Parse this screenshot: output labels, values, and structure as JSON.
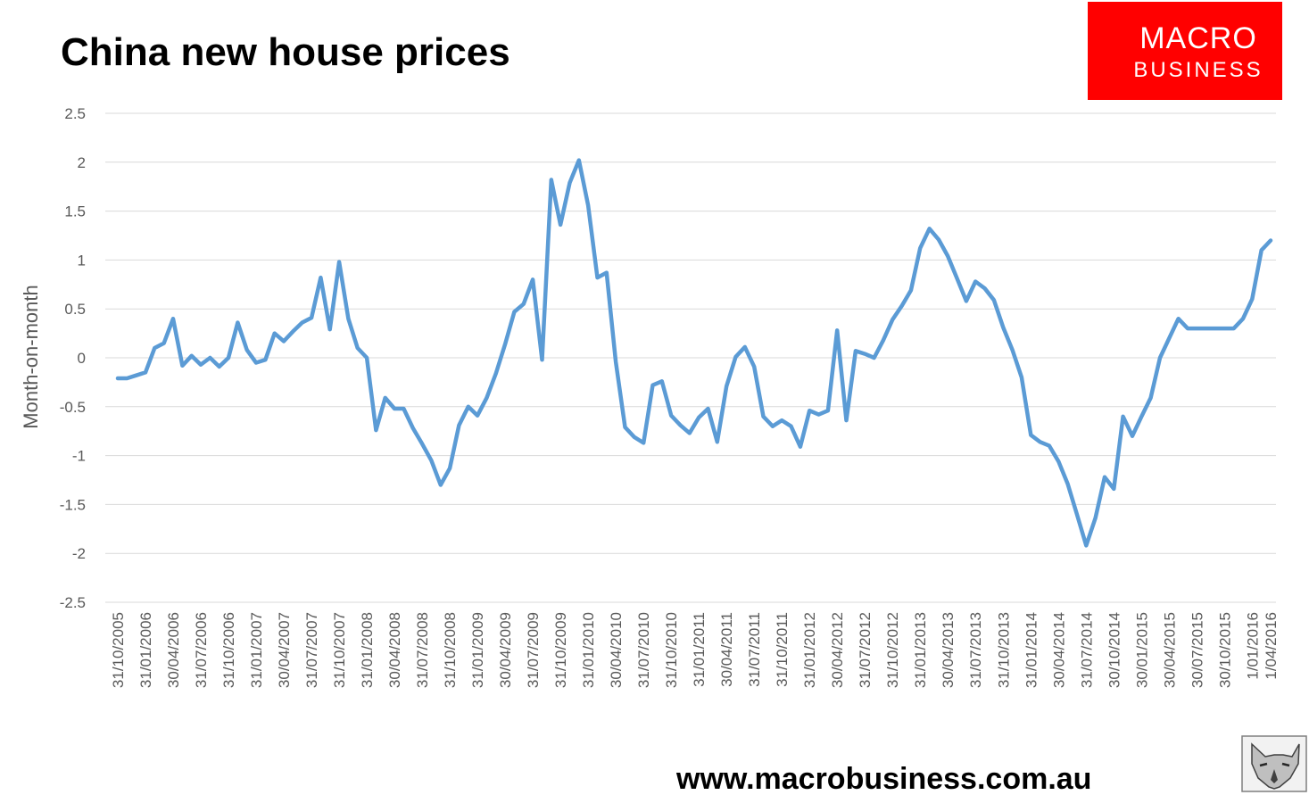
{
  "header": {
    "title": "China new house prices"
  },
  "logo": {
    "line1": "MACRO",
    "line2": "BUSINESS",
    "background_color": "#ff0000"
  },
  "footer": {
    "url": "www.macrobusiness.com.au"
  },
  "badge": {
    "icon": "wolf-head-icon"
  },
  "chart_data": {
    "type": "line",
    "title": "China new house prices",
    "xlabel": "",
    "ylabel": "Month-on-month",
    "ylim": [
      -2.5,
      2.5
    ],
    "yticks": [
      "2.5",
      "2",
      "1.5",
      "1",
      "0.5",
      "0",
      "-0.5",
      "-1",
      "-1.5",
      "-2",
      "-2.5"
    ],
    "xticks": [
      "31/10/2005",
      "31/01/2006",
      "30/04/2006",
      "31/07/2006",
      "31/10/2006",
      "31/01/2007",
      "30/04/2007",
      "31/07/2007",
      "31/10/2007",
      "31/01/2008",
      "30/04/2008",
      "31/07/2008",
      "31/10/2008",
      "31/01/2009",
      "30/04/2009",
      "31/07/2009",
      "31/10/2009",
      "31/01/2010",
      "30/04/2010",
      "31/07/2010",
      "31/10/2010",
      "31/01/2011",
      "30/04/2011",
      "31/07/2011",
      "31/10/2011",
      "31/01/2012",
      "30/04/2012",
      "31/07/2012",
      "31/10/2012",
      "31/01/2013",
      "30/04/2013",
      "31/07/2013",
      "31/10/2013",
      "31/01/2014",
      "30/04/2014",
      "31/07/2014",
      "30/10/2014",
      "30/01/2015",
      "30/04/2015",
      "30/07/2015",
      "30/10/2015",
      "1/01/2016",
      "1/04/2016"
    ],
    "grid": true,
    "legend": "none",
    "line_color": "#5b9bd5",
    "series": [
      {
        "values": [
          -0.21,
          -0.21,
          -0.18,
          -0.15,
          0.1,
          0.15,
          0.4,
          -0.08,
          0.02,
          -0.07,
          0.0,
          -0.09,
          0.0,
          0.36,
          0.08,
          -0.05,
          -0.02,
          0.25,
          0.17,
          0.27,
          0.36,
          0.41,
          0.82,
          0.29,
          0.98,
          0.4,
          0.1,
          0.0,
          -0.74,
          -0.41,
          -0.52,
          -0.52,
          -0.72,
          -0.88,
          -1.05,
          -1.3,
          -1.13,
          -0.69,
          -0.5,
          -0.59,
          -0.41,
          -0.16,
          0.14,
          0.47,
          0.55,
          0.8,
          -0.02,
          1.82,
          1.36,
          1.79,
          2.02,
          1.56,
          0.82,
          0.87,
          -0.04,
          -0.71,
          -0.81,
          -0.87,
          -0.28,
          -0.24,
          -0.59,
          -0.69,
          -0.77,
          -0.61,
          -0.52,
          -0.86,
          -0.29,
          0.01,
          0.11,
          -0.09,
          -0.6,
          -0.7,
          -0.64,
          -0.7,
          -0.91,
          -0.54,
          -0.58,
          -0.54,
          0.28,
          -0.64,
          0.07,
          0.04,
          0.0,
          0.18,
          0.39,
          0.53,
          0.69,
          1.12,
          1.32,
          1.21,
          1.04,
          0.81,
          0.58,
          0.78,
          0.71,
          0.59,
          0.31,
          0.08,
          -0.2,
          -0.79,
          -0.86,
          -0.9,
          -1.06,
          -1.29,
          -1.6,
          -1.92,
          -1.64,
          -1.22,
          -1.34,
          -0.6,
          -0.8,
          -0.6,
          -0.41,
          0.0,
          0.2,
          0.4,
          0.3,
          0.3,
          0.3,
          0.3,
          0.3,
          0.3,
          0.4,
          0.6,
          1.1,
          1.2
        ]
      }
    ]
  }
}
